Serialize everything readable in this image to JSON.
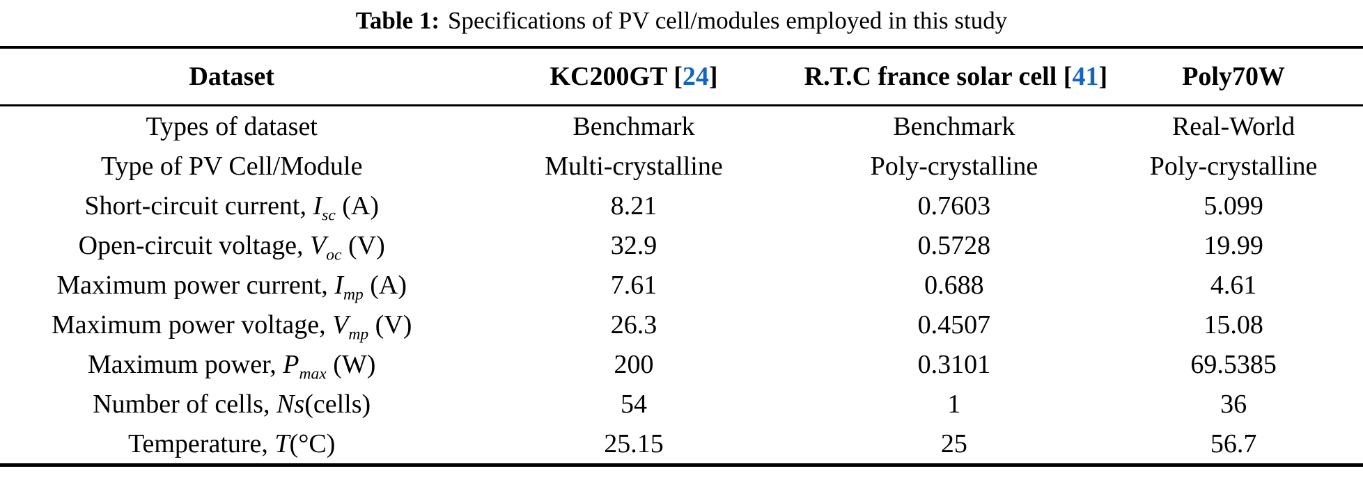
{
  "caption": {
    "label": "Table 1:",
    "text": "Specifications of PV cell/modules employed in this study"
  },
  "colors": {
    "text": "#000000",
    "citation_blue": "#1565c0",
    "rule": "#000000",
    "background": "#ffffff"
  },
  "table": {
    "headers": [
      {
        "text": "Dataset"
      },
      {
        "text": "KC200GT",
        "cite": "24"
      },
      {
        "text": "R.T.C france solar cell",
        "cite": "41"
      },
      {
        "text": "Poly70W"
      }
    ],
    "rows": [
      {
        "label": [
          {
            "type": "text",
            "value": "Types of dataset"
          }
        ],
        "values": [
          "Benchmark",
          "Benchmark",
          "Real-World"
        ]
      },
      {
        "label": [
          {
            "type": "text",
            "value": "Type of PV Cell/Module"
          }
        ],
        "values": [
          "Multi-crystalline",
          "Poly-crystalline",
          "Poly-crystalline"
        ]
      },
      {
        "label": [
          {
            "type": "text",
            "value": "Short-circuit current, "
          },
          {
            "type": "var",
            "value": "I"
          },
          {
            "type": "sub",
            "value": "sc"
          },
          {
            "type": "text",
            "value": " (A)"
          }
        ],
        "values": [
          "8.21",
          "0.7603",
          "5.099"
        ]
      },
      {
        "label": [
          {
            "type": "text",
            "value": "Open-circuit voltage, "
          },
          {
            "type": "var",
            "value": "V"
          },
          {
            "type": "sub",
            "value": "oc"
          },
          {
            "type": "text",
            "value": " (V)"
          }
        ],
        "values": [
          "32.9",
          "0.5728",
          "19.99"
        ]
      },
      {
        "label": [
          {
            "type": "text",
            "value": "Maximum power current, "
          },
          {
            "type": "var",
            "value": "I"
          },
          {
            "type": "sub",
            "value": "mp"
          },
          {
            "type": "text",
            "value": " (A)"
          }
        ],
        "values": [
          "7.61",
          "0.688",
          "4.61"
        ]
      },
      {
        "label": [
          {
            "type": "text",
            "value": "Maximum power voltage, "
          },
          {
            "type": "var",
            "value": "V"
          },
          {
            "type": "sub",
            "value": "mp"
          },
          {
            "type": "text",
            "value": " (V)"
          }
        ],
        "values": [
          "26.3",
          "0.4507",
          "15.08"
        ]
      },
      {
        "label": [
          {
            "type": "text",
            "value": "Maximum power, "
          },
          {
            "type": "var",
            "value": "P"
          },
          {
            "type": "sub",
            "value": "max"
          },
          {
            "type": "text",
            "value": " (W)"
          }
        ],
        "values": [
          "200",
          "0.3101",
          "69.5385"
        ]
      },
      {
        "label": [
          {
            "type": "text",
            "value": "Number of cells, "
          },
          {
            "type": "var",
            "value": "Ns"
          },
          {
            "type": "text",
            "value": "(cells)"
          }
        ],
        "values": [
          "54",
          "1",
          "36"
        ]
      },
      {
        "label": [
          {
            "type": "text",
            "value": "Temperature, "
          },
          {
            "type": "var",
            "value": "T"
          },
          {
            "type": "text",
            "value": "(°C)"
          }
        ],
        "values": [
          "25.15",
          "25",
          "56.7"
        ]
      }
    ]
  },
  "chart_data": {
    "type": "table",
    "title": "Table 1: Specifications of PV cell/modules employed in this study",
    "columns": [
      "Dataset",
      "KC200GT [24]",
      "R.T.C france solar cell [41]",
      "Poly70W"
    ],
    "rows": [
      [
        "Types of dataset",
        "Benchmark",
        "Benchmark",
        "Real-World"
      ],
      [
        "Type of PV Cell/Module",
        "Multi-crystalline",
        "Poly-crystalline",
        "Poly-crystalline"
      ],
      [
        "Short-circuit current, Isc (A)",
        "8.21",
        "0.7603",
        "5.099"
      ],
      [
        "Open-circuit voltage, Voc (V)",
        "32.9",
        "0.5728",
        "19.99"
      ],
      [
        "Maximum power current, Imp (A)",
        "7.61",
        "0.688",
        "4.61"
      ],
      [
        "Maximum power voltage, Vmp (V)",
        "26.3",
        "0.4507",
        "15.08"
      ],
      [
        "Maximum power, Pmax (W)",
        "200",
        "0.3101",
        "69.5385"
      ],
      [
        "Number of cells, Ns (cells)",
        "54",
        "1",
        "36"
      ],
      [
        "Temperature, T (°C)",
        "25.15",
        "25",
        "56.7"
      ]
    ]
  }
}
